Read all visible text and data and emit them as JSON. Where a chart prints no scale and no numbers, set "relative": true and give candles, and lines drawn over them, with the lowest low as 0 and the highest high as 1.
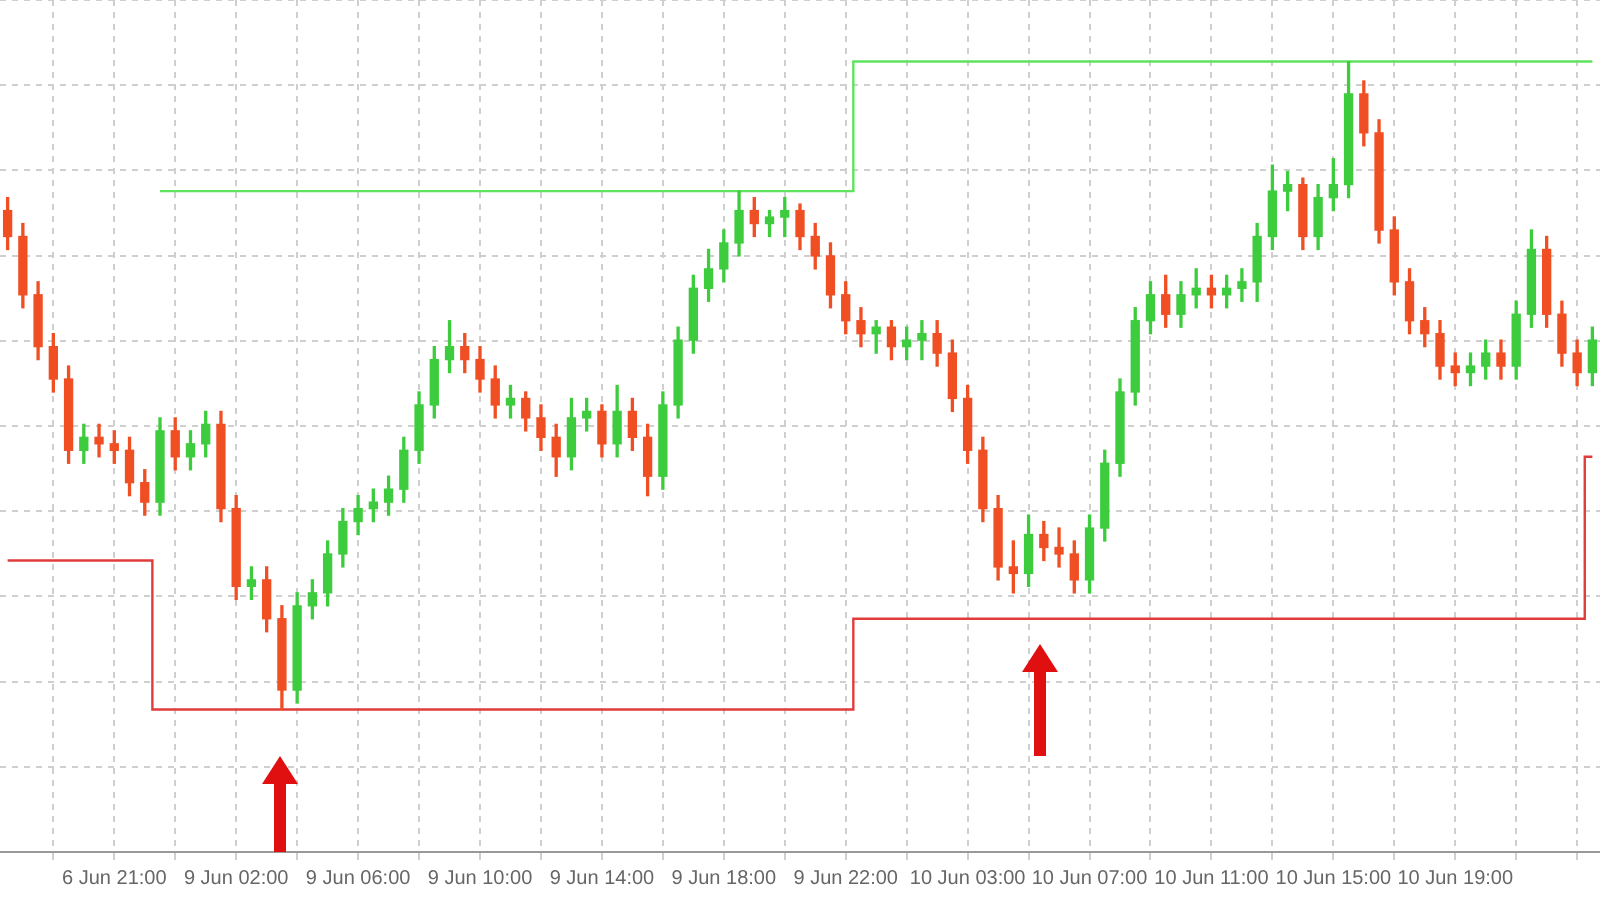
{
  "chart_data": {
    "type": "candlestick",
    "relative": true,
    "grid": true,
    "categories": [
      null,
      null,
      null,
      null,
      null,
      null,
      null,
      "6 Jun 21:00",
      null,
      null,
      null,
      null,
      null,
      null,
      null,
      "9 Jun 02:00",
      null,
      null,
      null,
      null,
      null,
      null,
      null,
      "9 Jun 06:00",
      null,
      null,
      null,
      null,
      null,
      null,
      null,
      "9 Jun 10:00",
      null,
      null,
      null,
      null,
      null,
      null,
      null,
      "9 Jun 14:00",
      null,
      null,
      null,
      null,
      null,
      null,
      null,
      "9 Jun 18:00",
      null,
      null,
      null,
      null,
      null,
      null,
      null,
      "9 Jun 22:00",
      null,
      null,
      null,
      null,
      null,
      null,
      null,
      "10 Jun 03:00",
      null,
      null,
      null,
      null,
      null,
      null,
      null,
      "10 Jun 07:00",
      null,
      null,
      null,
      null,
      null,
      null,
      null,
      "10 Jun 11:00",
      null,
      null,
      null,
      null,
      null,
      null,
      null,
      "10 Jun 15:00",
      null,
      null,
      null,
      null,
      null,
      null,
      null,
      "10 Jun 19:00",
      null,
      null,
      null,
      null,
      null,
      null,
      null,
      null,
      null
    ],
    "ohlc": [
      [
        0.77,
        0.79,
        0.71,
        0.73
      ],
      [
        0.73,
        0.75,
        0.62,
        0.64
      ],
      [
        0.64,
        0.66,
        0.54,
        0.56
      ],
      [
        0.56,
        0.58,
        0.49,
        0.51
      ],
      [
        0.51,
        0.53,
        0.38,
        0.4
      ],
      [
        0.4,
        0.44,
        0.38,
        0.42
      ],
      [
        0.42,
        0.44,
        0.39,
        0.41
      ],
      [
        0.41,
        0.43,
        0.38,
        0.4
      ],
      [
        0.4,
        0.42,
        0.33,
        0.35
      ],
      [
        0.35,
        0.37,
        0.3,
        0.32
      ],
      [
        0.32,
        0.45,
        0.3,
        0.43
      ],
      [
        0.43,
        0.45,
        0.37,
        0.39
      ],
      [
        0.39,
        0.43,
        0.37,
        0.41
      ],
      [
        0.41,
        0.46,
        0.39,
        0.44
      ],
      [
        0.44,
        0.46,
        0.29,
        0.31
      ],
      [
        0.31,
        0.33,
        0.17,
        0.19
      ],
      [
        0.19,
        0.22,
        0.17,
        0.2
      ],
      [
        0.2,
        0.22,
        0.12,
        0.14
      ],
      [
        0.14,
        0.16,
        0,
        0.03
      ],
      [
        0.03,
        0.18,
        0.01,
        0.16
      ],
      [
        0.16,
        0.2,
        0.14,
        0.18
      ],
      [
        0.18,
        0.26,
        0.16,
        0.24
      ],
      [
        0.24,
        0.31,
        0.22,
        0.29
      ],
      [
        0.29,
        0.33,
        0.27,
        0.31
      ],
      [
        0.31,
        0.34,
        0.29,
        0.32
      ],
      [
        0.32,
        0.36,
        0.3,
        0.34
      ],
      [
        0.34,
        0.42,
        0.32,
        0.4
      ],
      [
        0.4,
        0.49,
        0.38,
        0.47
      ],
      [
        0.47,
        0.56,
        0.45,
        0.54
      ],
      [
        0.54,
        0.6,
        0.52,
        0.56
      ],
      [
        0.56,
        0.58,
        0.52,
        0.54
      ],
      [
        0.54,
        0.56,
        0.49,
        0.51
      ],
      [
        0.51,
        0.53,
        0.45,
        0.47
      ],
      [
        0.47,
        0.5,
        0.45,
        0.48
      ],
      [
        0.48,
        0.49,
        0.43,
        0.45
      ],
      [
        0.45,
        0.47,
        0.4,
        0.42
      ],
      [
        0.42,
        0.44,
        0.36,
        0.39
      ],
      [
        0.39,
        0.48,
        0.37,
        0.45
      ],
      [
        0.45,
        0.48,
        0.43,
        0.46
      ],
      [
        0.46,
        0.47,
        0.39,
        0.41
      ],
      [
        0.41,
        0.5,
        0.39,
        0.46
      ],
      [
        0.46,
        0.48,
        0.4,
        0.42
      ],
      [
        0.42,
        0.44,
        0.33,
        0.36
      ],
      [
        0.36,
        0.49,
        0.34,
        0.47
      ],
      [
        0.47,
        0.59,
        0.45,
        0.57
      ],
      [
        0.57,
        0.67,
        0.55,
        0.65
      ],
      [
        0.65,
        0.71,
        0.63,
        0.68
      ],
      [
        0.68,
        0.74,
        0.66,
        0.72
      ],
      [
        0.72,
        0.8,
        0.7,
        0.77
      ],
      [
        0.77,
        0.79,
        0.73,
        0.75
      ],
      [
        0.75,
        0.77,
        0.73,
        0.76
      ],
      [
        0.76,
        0.79,
        0.73,
        0.77
      ],
      [
        0.77,
        0.78,
        0.71,
        0.73
      ],
      [
        0.73,
        0.75,
        0.68,
        0.7
      ],
      [
        0.7,
        0.72,
        0.62,
        0.64
      ],
      [
        0.64,
        0.66,
        0.58,
        0.6
      ],
      [
        0.6,
        0.62,
        0.56,
        0.58
      ],
      [
        0.58,
        0.6,
        0.55,
        0.59
      ],
      [
        0.59,
        0.6,
        0.54,
        0.56
      ],
      [
        0.56,
        0.59,
        0.54,
        0.57
      ],
      [
        0.57,
        0.6,
        0.54,
        0.58
      ],
      [
        0.58,
        0.6,
        0.53,
        0.55
      ],
      [
        0.55,
        0.57,
        0.46,
        0.48
      ],
      [
        0.48,
        0.5,
        0.38,
        0.4
      ],
      [
        0.4,
        0.42,
        0.29,
        0.31
      ],
      [
        0.31,
        0.33,
        0.2,
        0.22
      ],
      [
        0.22,
        0.26,
        0.18,
        0.21
      ],
      [
        0.21,
        0.3,
        0.19,
        0.27
      ],
      [
        0.27,
        0.29,
        0.23,
        0.25
      ],
      [
        0.25,
        0.28,
        0.22,
        0.24
      ],
      [
        0.24,
        0.26,
        0.18,
        0.2
      ],
      [
        0.2,
        0.3,
        0.18,
        0.28
      ],
      [
        0.28,
        0.4,
        0.26,
        0.38
      ],
      [
        0.38,
        0.51,
        0.36,
        0.49
      ],
      [
        0.49,
        0.62,
        0.47,
        0.6
      ],
      [
        0.6,
        0.66,
        0.58,
        0.64
      ],
      [
        0.64,
        0.67,
        0.59,
        0.61
      ],
      [
        0.61,
        0.66,
        0.59,
        0.64
      ],
      [
        0.64,
        0.68,
        0.62,
        0.65
      ],
      [
        0.65,
        0.67,
        0.62,
        0.64
      ],
      [
        0.64,
        0.67,
        0.62,
        0.65
      ],
      [
        0.65,
        0.68,
        0.63,
        0.66
      ],
      [
        0.66,
        0.75,
        0.63,
        0.73
      ],
      [
        0.73,
        0.84,
        0.71,
        0.8
      ],
      [
        0.8,
        0.83,
        0.77,
        0.81
      ],
      [
        0.81,
        0.82,
        0.71,
        0.73
      ],
      [
        0.73,
        0.81,
        0.71,
        0.79
      ],
      [
        0.79,
        0.85,
        0.77,
        0.81
      ],
      [
        0.81,
        1,
        0.79,
        0.95
      ],
      [
        0.95,
        0.97,
        0.87,
        0.89
      ],
      [
        0.89,
        0.91,
        0.72,
        0.74
      ],
      [
        0.74,
        0.76,
        0.64,
        0.66
      ],
      [
        0.66,
        0.68,
        0.58,
        0.6
      ],
      [
        0.6,
        0.62,
        0.56,
        0.58
      ],
      [
        0.58,
        0.6,
        0.51,
        0.53
      ],
      [
        0.53,
        0.55,
        0.5,
        0.52
      ],
      [
        0.52,
        0.55,
        0.5,
        0.53
      ],
      [
        0.53,
        0.57,
        0.51,
        0.55
      ],
      [
        0.55,
        0.57,
        0.51,
        0.53
      ],
      [
        0.53,
        0.63,
        0.51,
        0.61
      ],
      [
        0.61,
        0.74,
        0.59,
        0.71
      ],
      [
        0.71,
        0.73,
        0.59,
        0.61
      ],
      [
        0.61,
        0.63,
        0.53,
        0.55
      ],
      [
        0.55,
        0.57,
        0.5,
        0.52
      ],
      [
        0.52,
        0.59,
        0.5,
        0.57
      ]
    ],
    "colors": [
      "#f04e23",
      "#f04e23",
      "#f04e23",
      "#f04e23",
      "#f04e23",
      "#3dcc3d",
      "#f04e23",
      "#f04e23",
      "#f04e23",
      "#f04e23",
      "#3dcc3d",
      "#f04e23",
      "#3dcc3d",
      "#3dcc3d",
      "#f04e23",
      "#f04e23",
      "#3dcc3d",
      "#f04e23",
      "#f04e23",
      "#3dcc3d",
      "#3dcc3d",
      "#3dcc3d",
      "#3dcc3d",
      "#3dcc3d",
      "#3dcc3d",
      "#3dcc3d",
      "#3dcc3d",
      "#3dcc3d",
      "#3dcc3d",
      "#3dcc3d",
      "#f04e23",
      "#f04e23",
      "#f04e23",
      "#3dcc3d",
      "#f04e23",
      "#f04e23",
      "#f04e23",
      "#3dcc3d",
      "#3dcc3d",
      "#f04e23",
      "#3dcc3d",
      "#f04e23",
      "#f04e23",
      "#3dcc3d",
      "#3dcc3d",
      "#3dcc3d",
      "#3dcc3d",
      "#3dcc3d",
      "#3dcc3d",
      "#f04e23",
      "#3dcc3d",
      "#3dcc3d",
      "#f04e23",
      "#f04e23",
      "#f04e23",
      "#f04e23",
      "#f04e23",
      "#3dcc3d",
      "#f04e23",
      "#3dcc3d",
      "#3dcc3d",
      "#f04e23",
      "#f04e23",
      "#f04e23",
      "#f04e23",
      "#f04e23",
      "#f04e23",
      "#3dcc3d",
      "#f04e23",
      "#f04e23",
      "#f04e23",
      "#3dcc3d",
      "#3dcc3d",
      "#3dcc3d",
      "#3dcc3d",
      "#3dcc3d",
      "#f04e23",
      "#3dcc3d",
      "#3dcc3d",
      "#f04e23",
      "#3dcc3d",
      "#3dcc3d",
      "#3dcc3d",
      "#3dcc3d",
      "#3dcc3d",
      "#f04e23",
      "#3dcc3d",
      "#3dcc3d",
      "#3dcc3d",
      "#f04e23",
      "#f04e23",
      "#f04e23",
      "#f04e23",
      "#f04e23",
      "#f04e23",
      "#f04e23",
      "#3dcc3d",
      "#3dcc3d",
      "#f04e23",
      "#3dcc3d",
      "#3dcc3d",
      "#f04e23",
      "#f04e23",
      "#f04e23",
      "#3dcc3d"
    ],
    "series": [
      {
        "type": "step",
        "color": "#5fe35f",
        "values": [
          null,
          null,
          null,
          null,
          null,
          null,
          null,
          null,
          null,
          null,
          0.8,
          0.8,
          0.8,
          0.8,
          0.8,
          0.8,
          0.8,
          0.8,
          0.8,
          0.8,
          0.8,
          0.8,
          0.8,
          0.8,
          0.8,
          0.8,
          0.8,
          0.8,
          0.8,
          0.8,
          0.8,
          0.8,
          0.8,
          0.8,
          0.8,
          0.8,
          0.8,
          0.8,
          0.8,
          0.8,
          0.8,
          0.8,
          0.8,
          0.8,
          0.8,
          0.8,
          0.8,
          0.8,
          0.8,
          0.8,
          0.8,
          0.8,
          0.8,
          0.8,
          0.8,
          0.8,
          1,
          1,
          1,
          1,
          1,
          1,
          1,
          1,
          1,
          1,
          1,
          1,
          1,
          1,
          1,
          1,
          1,
          1,
          1,
          1,
          1,
          1,
          1,
          1,
          1,
          1,
          1,
          1,
          1,
          1,
          1,
          1,
          1,
          1,
          1,
          1,
          1,
          1,
          1,
          1,
          1,
          1,
          1,
          1,
          1,
          1,
          1,
          1,
          1
        ]
      },
      {
        "type": "step",
        "color": "#e03c3c",
        "values": [
          0.23,
          0.23,
          0.23,
          0.23,
          0.23,
          0.23,
          0.23,
          0.23,
          0.23,
          0.23,
          0,
          0,
          0,
          0,
          0,
          0,
          0,
          0,
          0,
          0,
          0,
          0,
          0,
          0,
          0,
          0,
          0,
          0,
          0,
          0,
          0,
          0,
          0,
          0,
          0,
          0,
          0,
          0,
          0,
          0,
          0,
          0,
          0,
          0,
          0,
          0,
          0,
          0,
          0,
          0,
          0,
          0,
          0,
          0,
          0,
          0,
          0.14,
          0.14,
          0.14,
          0.14,
          0.14,
          0.14,
          0.14,
          0.14,
          0.14,
          0.14,
          0.14,
          0.14,
          0.14,
          0.14,
          0.14,
          0.14,
          0.14,
          0.14,
          0.14,
          0.14,
          0.14,
          0.14,
          0.14,
          0.14,
          0.14,
          0.14,
          0.14,
          0.14,
          0.14,
          0.14,
          0.14,
          0.14,
          0.14,
          0.14,
          0.14,
          0.14,
          0.14,
          0.14,
          0.14,
          0.14,
          0.14,
          0.14,
          0.14,
          0.14,
          0.14,
          0.14,
          0.14,
          0.14,
          0.39
        ]
      }
    ]
  }
}
